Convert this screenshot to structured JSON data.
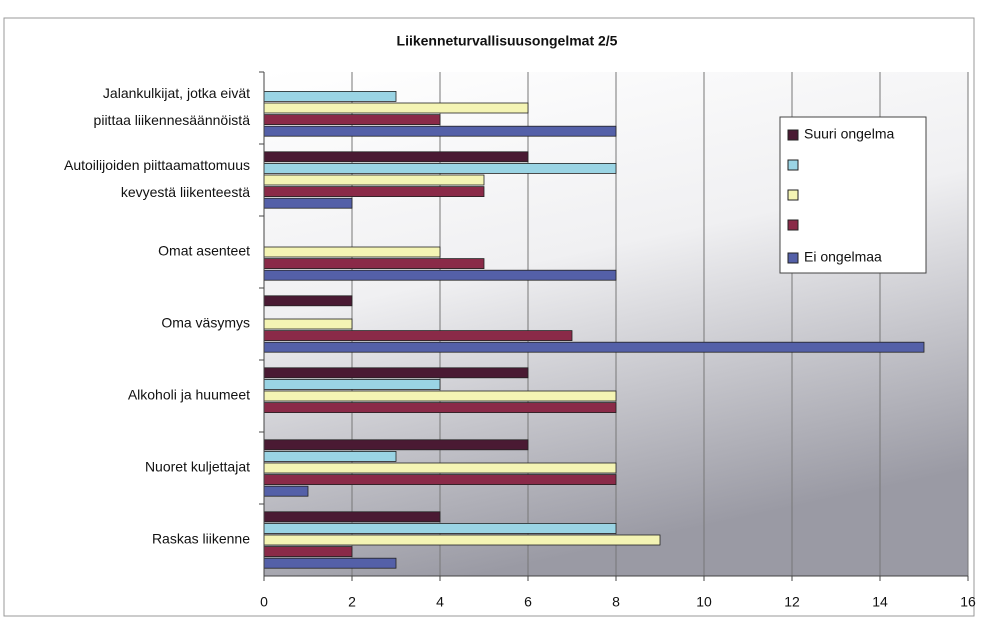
{
  "chart_data": {
    "type": "bar",
    "orientation": "horizontal",
    "title": "Liikenneturvallisuusongelmat 2/5",
    "categories": [
      [
        "Jalankulkijat, jotka eivät",
        "piittaa liikennesäännöistä"
      ],
      [
        "Autoilijoiden piittaamattomuus",
        "kevyestä liikenteestä"
      ],
      [
        "Omat asenteet"
      ],
      [
        "Oma väsymys"
      ],
      [
        "Alkoholi ja huumeet"
      ],
      [
        "Nuoret kuljettajat"
      ],
      [
        "Raskas liikenne"
      ]
    ],
    "series": [
      {
        "name": "Suuri ongelma",
        "color": "#4a1a33",
        "values": [
          0,
          6,
          0,
          2,
          6,
          6,
          4
        ]
      },
      {
        "color": "#9ad4e4",
        "values": [
          3,
          8,
          0,
          0,
          4,
          3,
          8
        ]
      },
      {
        "color": "#f4f4b4",
        "values": [
          6,
          5,
          4,
          2,
          8,
          8,
          9
        ]
      },
      {
        "color": "#8a2a48",
        "values": [
          4,
          5,
          5,
          7,
          8,
          8,
          2
        ]
      },
      {
        "name": "Ei ongelmaa",
        "color": "#5460a8",
        "values": [
          8,
          2,
          8,
          15,
          0,
          1,
          3
        ]
      }
    ],
    "xlim": [
      0,
      16
    ],
    "xticks": [
      0,
      2,
      4,
      6,
      8,
      10,
      12,
      14,
      16
    ],
    "grid": true,
    "legend": "right"
  }
}
